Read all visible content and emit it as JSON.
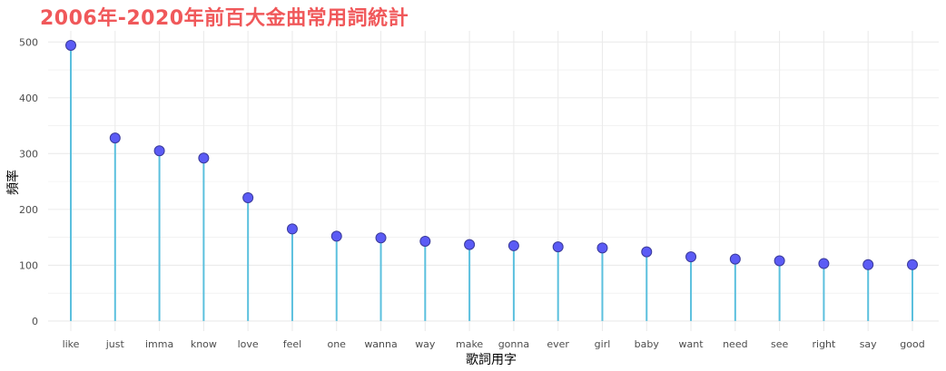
{
  "chart_data": {
    "type": "lollipop",
    "title": "2006年-2020年前百大金曲常用詞統計",
    "xlabel": "歌詞用字",
    "ylabel": "頻率",
    "categories": [
      "like",
      "just",
      "imma",
      "know",
      "love",
      "feel",
      "one",
      "wanna",
      "way",
      "make",
      "gonna",
      "ever",
      "girl",
      "baby",
      "want",
      "need",
      "see",
      "right",
      "say",
      "good"
    ],
    "values": [
      494,
      328,
      305,
      292,
      221,
      165,
      152,
      149,
      143,
      137,
      135,
      133,
      131,
      124,
      115,
      111,
      108,
      103,
      101,
      101
    ],
    "yticks": [
      0,
      100,
      200,
      300,
      400,
      500
    ],
    "ylim": [
      -18,
      520
    ],
    "grid": true,
    "colors": {
      "stem": "#5bc0de",
      "point_fill": "#5b5bf5",
      "point_stroke": "#3a3a9a",
      "title": "#f0585a",
      "grid": "#ebebeb"
    }
  }
}
